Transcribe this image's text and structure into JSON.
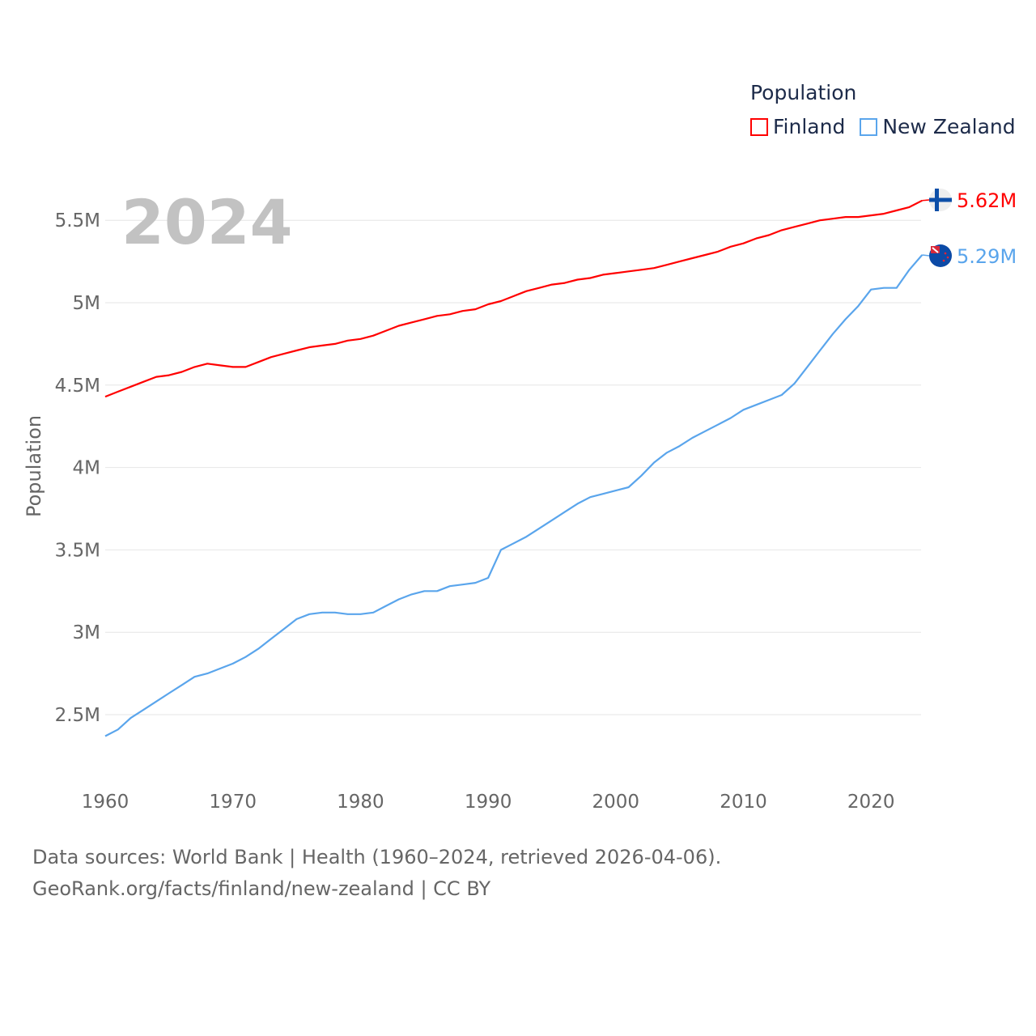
{
  "chart_data": {
    "type": "line",
    "title": "Population",
    "current_year_label": "2024",
    "ylabel": "Population",
    "xlabel": "",
    "xlim": [
      1960,
      2024
    ],
    "ylim": [
      2.3,
      5.7
    ],
    "y_unit": "millions",
    "x_ticks": [
      "1960",
      "1970",
      "1980",
      "1990",
      "2000",
      "2010",
      "2020"
    ],
    "y_ticks": [
      {
        "v": 2.5,
        "label": "2.5M"
      },
      {
        "v": 3,
        "label": "3M"
      },
      {
        "v": 3.5,
        "label": "3.5M"
      },
      {
        "v": 4,
        "label": "4M"
      },
      {
        "v": 4.5,
        "label": "4.5M"
      },
      {
        "v": 5,
        "label": "5M"
      },
      {
        "v": 5.5,
        "label": "5.5M"
      }
    ],
    "grid": true,
    "legend_position": "top-right",
    "x": [
      1960,
      1961,
      1962,
      1963,
      1964,
      1965,
      1966,
      1967,
      1968,
      1969,
      1970,
      1971,
      1972,
      1973,
      1974,
      1975,
      1976,
      1977,
      1978,
      1979,
      1980,
      1981,
      1982,
      1983,
      1984,
      1985,
      1986,
      1987,
      1988,
      1989,
      1990,
      1991,
      1992,
      1993,
      1994,
      1995,
      1996,
      1997,
      1998,
      1999,
      2000,
      2001,
      2002,
      2003,
      2004,
      2005,
      2006,
      2007,
      2008,
      2009,
      2010,
      2011,
      2012,
      2013,
      2014,
      2015,
      2016,
      2017,
      2018,
      2019,
      2020,
      2021,
      2022,
      2023,
      2024
    ],
    "series": [
      {
        "name": "Finland",
        "color": "#ff0000",
        "end_label": "5.62M",
        "flag": "finland-flag",
        "values": [
          4.43,
          4.46,
          4.49,
          4.52,
          4.55,
          4.56,
          4.58,
          4.61,
          4.63,
          4.62,
          4.61,
          4.61,
          4.64,
          4.67,
          4.69,
          4.71,
          4.73,
          4.74,
          4.75,
          4.77,
          4.78,
          4.8,
          4.83,
          4.86,
          4.88,
          4.9,
          4.92,
          4.93,
          4.95,
          4.96,
          4.99,
          5.01,
          5.04,
          5.07,
          5.09,
          5.11,
          5.12,
          5.14,
          5.15,
          5.17,
          5.18,
          5.19,
          5.2,
          5.21,
          5.23,
          5.25,
          5.27,
          5.29,
          5.31,
          5.34,
          5.36,
          5.39,
          5.41,
          5.44,
          5.46,
          5.48,
          5.5,
          5.51,
          5.52,
          5.52,
          5.53,
          5.54,
          5.56,
          5.58,
          5.62
        ]
      },
      {
        "name": "New Zealand",
        "color": "#5aa5ec",
        "end_label": "5.29M",
        "flag": "new-zealand-flag",
        "values": [
          2.37,
          2.41,
          2.48,
          2.53,
          2.58,
          2.63,
          2.68,
          2.73,
          2.75,
          2.78,
          2.81,
          2.85,
          2.9,
          2.96,
          3.02,
          3.08,
          3.11,
          3.12,
          3.12,
          3.11,
          3.11,
          3.12,
          3.16,
          3.2,
          3.23,
          3.25,
          3.25,
          3.28,
          3.29,
          3.3,
          3.33,
          3.5,
          3.54,
          3.58,
          3.63,
          3.68,
          3.73,
          3.78,
          3.82,
          3.84,
          3.86,
          3.88,
          3.95,
          4.03,
          4.09,
          4.13,
          4.18,
          4.22,
          4.26,
          4.3,
          4.35,
          4.38,
          4.41,
          4.44,
          4.51,
          4.61,
          4.71,
          4.81,
          4.9,
          4.98,
          5.08,
          5.09,
          5.09,
          5.2,
          5.29
        ]
      }
    ]
  },
  "footer": {
    "line1": "Data sources: World Bank | Health (1960–2024, retrieved 2026-04-06).",
    "line2": "GeoRank.org/facts/finland/new-zealand | CC BY"
  }
}
